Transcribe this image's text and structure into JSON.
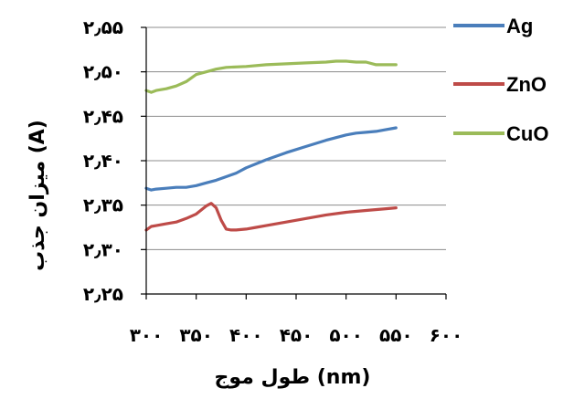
{
  "chart_data": {
    "type": "line",
    "xlabel": "طول موج (nm)",
    "ylabel": "میزان جذب (A)",
    "xlim": [
      300,
      600
    ],
    "ylim": [
      2.25,
      2.55
    ],
    "x_ticks": [
      "۳۰۰",
      "۳۵۰",
      "۴۰۰",
      "۴۵۰",
      "۵۰۰",
      "۵۵۰",
      "۶۰۰"
    ],
    "y_ticks": [
      "۲٫۵۵",
      "۲٫۵۰",
      "۲٫۴۵",
      "۲٫۴۰",
      "۲٫۳۵",
      "۲٫۳۰",
      "۲٫۲۵"
    ],
    "grid": "horizontal",
    "legend_position": "right",
    "series": [
      {
        "name": "Ag",
        "color": "#4a7ebb",
        "x": [
          300,
          305,
          310,
          320,
          330,
          340,
          350,
          360,
          370,
          380,
          390,
          400,
          420,
          440,
          460,
          480,
          500,
          510,
          520,
          530,
          540,
          550
        ],
        "y": [
          2.369,
          2.367,
          2.368,
          2.369,
          2.37,
          2.37,
          2.372,
          2.375,
          2.378,
          2.382,
          2.386,
          2.392,
          2.401,
          2.409,
          2.416,
          2.423,
          2.429,
          2.431,
          2.432,
          2.433,
          2.435,
          2.437
        ]
      },
      {
        "name": "ZnO",
        "color": "#be4b48",
        "x": [
          300,
          305,
          310,
          320,
          330,
          340,
          350,
          360,
          365,
          370,
          375,
          380,
          385,
          390,
          400,
          410,
          420,
          440,
          460,
          480,
          500,
          520,
          540,
          550
        ],
        "y": [
          2.322,
          2.326,
          2.327,
          2.329,
          2.331,
          2.335,
          2.34,
          2.349,
          2.352,
          2.347,
          2.333,
          2.323,
          2.322,
          2.322,
          2.323,
          2.325,
          2.327,
          2.331,
          2.335,
          2.339,
          2.342,
          2.344,
          2.346,
          2.347
        ]
      },
      {
        "name": "CuO",
        "color": "#9bbb59",
        "x": [
          300,
          305,
          310,
          320,
          330,
          340,
          350,
          360,
          370,
          380,
          400,
          420,
          440,
          460,
          480,
          490,
          500,
          510,
          520,
          530,
          540,
          550
        ],
        "y": [
          2.479,
          2.477,
          2.479,
          2.481,
          2.484,
          2.489,
          2.497,
          2.5,
          2.503,
          2.505,
          2.506,
          2.508,
          2.509,
          2.51,
          2.511,
          2.512,
          2.512,
          2.511,
          2.511,
          2.508,
          2.508,
          2.508
        ]
      }
    ]
  }
}
